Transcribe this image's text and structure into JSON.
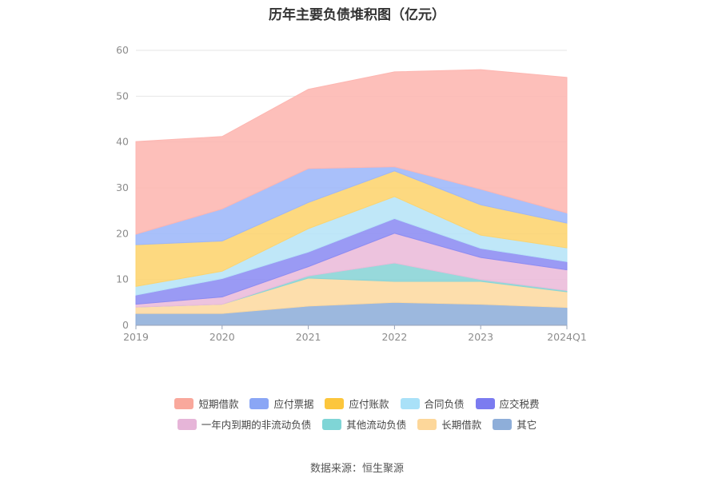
{
  "chart_data": {
    "type": "area",
    "stacked": true,
    "title": "历年主要负债堆积图（亿元）",
    "categories": [
      "2019",
      "2020",
      "2021",
      "2022",
      "2023",
      "2024Q1"
    ],
    "ylim": [
      0,
      60
    ],
    "yticks": [
      0,
      10,
      20,
      30,
      40,
      50,
      60
    ],
    "grid": true,
    "legend_position": "bottom",
    "series": [
      {
        "name": "其它",
        "color": "#8eaed9",
        "values": [
          2.6,
          2.6,
          4.2,
          5.0,
          4.6,
          3.9
        ]
      },
      {
        "name": "长期借款",
        "color": "#fdd9a0",
        "values": [
          1.4,
          2.0,
          6.1,
          4.6,
          5.0,
          3.4
        ]
      },
      {
        "name": "其他流动负债",
        "color": "#89d4d6",
        "values": [
          0.0,
          0.0,
          0.5,
          4.0,
          0.4,
          0.3
        ]
      },
      {
        "name": "一年内到期的非流动负债",
        "color": "#ebbbd9",
        "values": [
          0.6,
          1.6,
          2.0,
          6.5,
          4.8,
          4.5
        ]
      },
      {
        "name": "应交税费",
        "color": "#8c8cf2",
        "values": [
          2.0,
          4.0,
          3.2,
          3.2,
          2.0,
          1.8
        ]
      },
      {
        "name": "合同负债",
        "color": "#b6e4f7",
        "values": [
          1.9,
          1.6,
          5.1,
          4.8,
          2.9,
          3.0
        ]
      },
      {
        "name": "应付账款",
        "color": "#fdd46e",
        "values": [
          9.1,
          6.6,
          5.7,
          5.6,
          6.6,
          5.4
        ]
      },
      {
        "name": "应付票据",
        "color": "#9db7f9",
        "values": [
          2.3,
          7.0,
          7.4,
          0.9,
          3.4,
          2.2
        ]
      },
      {
        "name": "短期借款",
        "color": "#fdb6b1",
        "values": [
          20.2,
          15.8,
          17.3,
          20.7,
          26.1,
          29.6
        ]
      }
    ],
    "legend_rows": [
      [
        {
          "label": "短期借款",
          "color": "#f9a89c"
        },
        {
          "label": "应付票据",
          "color": "#8aa6f5"
        },
        {
          "label": "应付账款",
          "color": "#fcc63c"
        },
        {
          "label": "合同负债",
          "color": "#a9e1f8"
        },
        {
          "label": "应交税费",
          "color": "#7b7bf0"
        }
      ],
      [
        {
          "label": "一年内到期的非流动负债",
          "color": "#e6b5d8"
        },
        {
          "label": "其他流动负债",
          "color": "#7fd5d6"
        },
        {
          "label": "长期借款",
          "color": "#fdd79a"
        },
        {
          "label": "其它",
          "color": "#8eaed9"
        }
      ]
    ]
  },
  "footer": {
    "source": "数据来源：恒生聚源"
  }
}
